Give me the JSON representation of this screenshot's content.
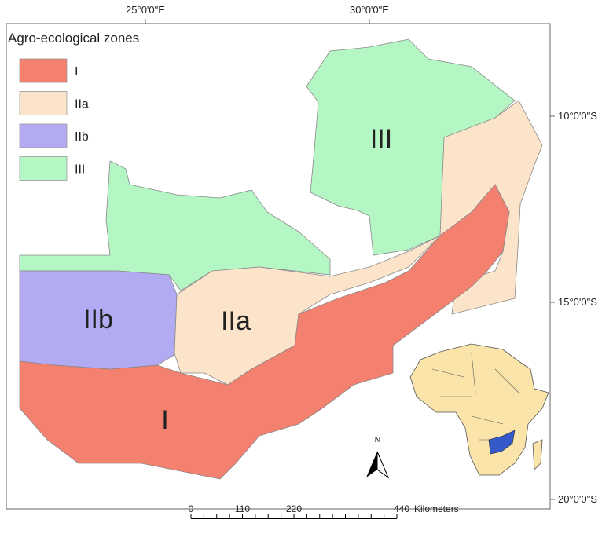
{
  "graticule": {
    "top": [
      "25°0'0\"E",
      "30°0'0\"E"
    ],
    "right": [
      "10°0'0\"S",
      "15°0'0\"S",
      "20°0'0\"S"
    ]
  },
  "legend": {
    "title": "Agro-ecological zones",
    "items": [
      {
        "label": "I",
        "color": "#f4806f"
      },
      {
        "label": "IIa",
        "color": "#fbe4c9"
      },
      {
        "label": "IIb",
        "color": "#b3aaf4"
      },
      {
        "label": "III",
        "color": "#b5f7c4"
      }
    ]
  },
  "zones": [
    {
      "label": "III"
    },
    {
      "label": "IIb"
    },
    {
      "label": "IIa"
    },
    {
      "label": "I"
    }
  ],
  "north_arrow": "N",
  "scale_bar": {
    "ticks": [
      0,
      110,
      220,
      440
    ],
    "unit": "Kilometers"
  }
}
